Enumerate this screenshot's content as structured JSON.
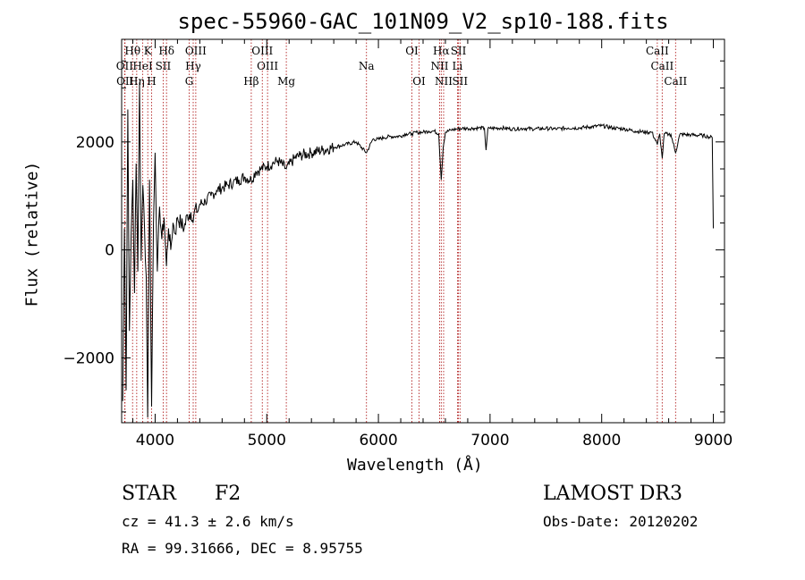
{
  "chart_data": {
    "type": "line",
    "title": "spec-55960-GAC_101N09_V2_sp10-188.fits",
    "xlabel": "Wavelength (Å)",
    "ylabel": "Flux (relative)",
    "xlim": [
      3700,
      9100
    ],
    "ylim": [
      -3200,
      3900
    ],
    "xticks": [
      4000,
      5000,
      6000,
      7000,
      8000,
      9000
    ],
    "xtick_labels": [
      "4000",
      "5000",
      "6000",
      "7000",
      "8000",
      "9000"
    ],
    "yticks": [
      -2000,
      0,
      2000
    ],
    "ytick_labels": [
      "−2000",
      "0",
      "2000"
    ],
    "series": [
      {
        "name": "spectrum",
        "x": [
          3710,
          3725,
          3740,
          3755,
          3770,
          3785,
          3800,
          3815,
          3830,
          3845,
          3860,
          3875,
          3890,
          3905,
          3920,
          3933,
          3950,
          3968,
          3985,
          4000,
          4020,
          4040,
          4060,
          4080,
          4101,
          4120,
          4140,
          4160,
          4180,
          4200,
          4230,
          4260,
          4290,
          4320,
          4340,
          4360,
          4380,
          4400,
          4450,
          4500,
          4550,
          4600,
          4650,
          4700,
          4750,
          4800,
          4861,
          4900,
          4950,
          5000,
          5050,
          5100,
          5175,
          5250,
          5300,
          5400,
          5500,
          5600,
          5700,
          5800,
          5893,
          5950,
          6000,
          6050,
          6100,
          6150,
          6200,
          6250,
          6300,
          6350,
          6400,
          6450,
          6500,
          6540,
          6563,
          6580,
          6600,
          6650,
          6700,
          6750,
          6800,
          6850,
          6900,
          6950,
          6964,
          6980,
          7000,
          7100,
          7200,
          7300,
          7400,
          7500,
          7600,
          7700,
          7800,
          7900,
          8000,
          8100,
          8200,
          8300,
          8400,
          8450,
          8498,
          8520,
          8542,
          8560,
          8600,
          8620,
          8662,
          8700,
          8800,
          8900,
          8950,
          8990,
          9000
        ],
        "y": [
          -2800,
          400,
          -2600,
          2600,
          -1500,
          300,
          1300,
          -800,
          1600,
          -400,
          3100,
          -200,
          1200,
          400,
          -500,
          -3100,
          1300,
          -2900,
          500,
          1800,
          -400,
          800,
          200,
          600,
          -300,
          400,
          0,
          500,
          300,
          600,
          500,
          400,
          650,
          700,
          500,
          800,
          700,
          850,
          900,
          1000,
          1100,
          1150,
          1200,
          1250,
          1300,
          1350,
          1300,
          1450,
          1500,
          1550,
          1600,
          1650,
          1500,
          1700,
          1750,
          1800,
          1850,
          1900,
          1950,
          2000,
          1800,
          2050,
          2050,
          2080,
          2100,
          2100,
          2110,
          2150,
          2150,
          2180,
          2180,
          2200,
          2200,
          2150,
          1300,
          1900,
          2180,
          2220,
          2240,
          2250,
          2250,
          2250,
          2260,
          2250,
          1850,
          2240,
          2250,
          2260,
          2240,
          2250,
          2240,
          2250,
          2240,
          2260,
          2260,
          2280,
          2300,
          2260,
          2240,
          2200,
          2180,
          2180,
          1950,
          2150,
          1700,
          2150,
          2140,
          2140,
          1800,
          2140,
          2130,
          2120,
          2100,
          2080,
          400
        ]
      }
    ],
    "line_markers": [
      {
        "label": "Hθ",
        "x": 3798,
        "row": 1
      },
      {
        "label": "K",
        "x": 3934,
        "row": 1
      },
      {
        "label": "Hδ",
        "x": 4102,
        "row": 1
      },
      {
        "label": "OIII",
        "x": 4364,
        "row": 1
      },
      {
        "label": "OIII",
        "x": 4960,
        "row": 1
      },
      {
        "label": "OI",
        "x": 6300,
        "row": 1
      },
      {
        "label": "Hα",
        "x": 6563,
        "row": 1
      },
      {
        "label": "SII",
        "x": 6717,
        "row": 1
      },
      {
        "label": "CaII",
        "x": 8498,
        "row": 1
      },
      {
        "label": "OII",
        "x": 3727,
        "row": 2
      },
      {
        "label": "HeI",
        "x": 3889,
        "row": 2
      },
      {
        "label": "SII",
        "x": 4072,
        "row": 2
      },
      {
        "label": "Hγ",
        "x": 4341,
        "row": 2
      },
      {
        "label": "OIII",
        "x": 5007,
        "row": 2
      },
      {
        "label": "Na",
        "x": 5893,
        "row": 2
      },
      {
        "label": "NII",
        "x": 6548,
        "row": 2
      },
      {
        "label": "Li",
        "x": 6708,
        "row": 2
      },
      {
        "label": "CaII",
        "x": 8542,
        "row": 2
      },
      {
        "label": "OII",
        "x": 3730,
        "row": 3
      },
      {
        "label": "Hη",
        "x": 3835,
        "row": 3
      },
      {
        "label": "H",
        "x": 3968,
        "row": 3
      },
      {
        "label": "G",
        "x": 4305,
        "row": 3
      },
      {
        "label": "Hβ",
        "x": 4861,
        "row": 3
      },
      {
        "label": "Mg",
        "x": 5175,
        "row": 3
      },
      {
        "label": "OI",
        "x": 6364,
        "row": 3
      },
      {
        "label": "NII",
        "x": 6584,
        "row": 3
      },
      {
        "label": "SII",
        "x": 6731,
        "row": 3
      },
      {
        "label": "CaII",
        "x": 8662,
        "row": 3
      }
    ]
  },
  "info": {
    "object_type": "STAR",
    "subclass": "F2",
    "survey": "LAMOST DR3",
    "redshift": "cz =  41.3 ±  2.6 km/s",
    "obs_date": "Obs-Date: 20120202",
    "coords": "RA =   99.31666, DEC =    8.95755"
  }
}
